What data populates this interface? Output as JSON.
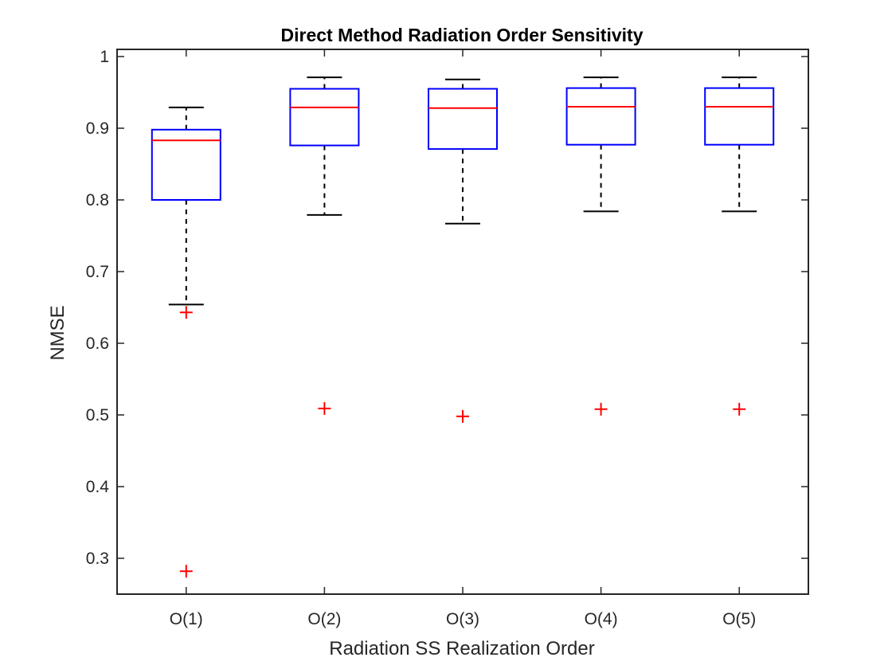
{
  "chart_data": {
    "type": "box",
    "title": "Direct Method Radiation Order Sensitivity",
    "xlabel": "Radiation SS Realization Order",
    "ylabel": "NMSE",
    "ylim": [
      0.25,
      1.01
    ],
    "yticks": [
      0.3,
      0.4,
      0.5,
      0.6,
      0.7,
      0.8,
      0.9,
      1
    ],
    "ytick_labels": [
      "0.3",
      "0.4",
      "0.5",
      "0.6",
      "0.7",
      "0.8",
      "0.9",
      "1"
    ],
    "categories": [
      "O(1)",
      "O(2)",
      "O(3)",
      "O(4)",
      "O(5)"
    ],
    "boxes": [
      {
        "label": "O(1)",
        "whisker_low": 0.654,
        "q1": 0.8,
        "median": 0.883,
        "q3": 0.898,
        "whisker_high": 0.929,
        "outliers": [
          0.643,
          0.282
        ]
      },
      {
        "label": "O(2)",
        "whisker_low": 0.779,
        "q1": 0.876,
        "median": 0.929,
        "q3": 0.955,
        "whisker_high": 0.971,
        "outliers": [
          0.509
        ]
      },
      {
        "label": "O(3)",
        "whisker_low": 0.767,
        "q1": 0.871,
        "median": 0.928,
        "q3": 0.955,
        "whisker_high": 0.968,
        "outliers": [
          0.498
        ]
      },
      {
        "label": "O(4)",
        "whisker_low": 0.784,
        "q1": 0.877,
        "median": 0.93,
        "q3": 0.956,
        "whisker_high": 0.971,
        "outliers": [
          0.508
        ]
      },
      {
        "label": "O(5)",
        "whisker_low": 0.784,
        "q1": 0.877,
        "median": 0.93,
        "q3": 0.956,
        "whisker_high": 0.971,
        "outliers": [
          0.508
        ]
      }
    ],
    "colors": {
      "box": "#0000ff",
      "median": "#ff0000",
      "whisker": "#000000",
      "outlier": "#ff0000",
      "axis": "#262626"
    },
    "grid": false
  }
}
